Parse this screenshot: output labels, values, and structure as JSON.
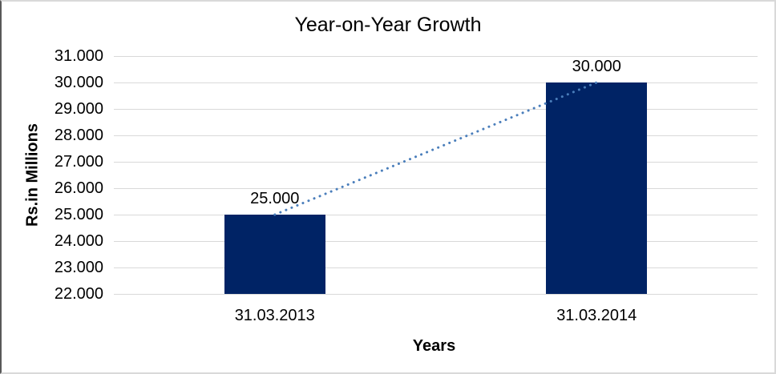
{
  "chart_data": {
    "type": "bar",
    "title": "Year-on-Year Growth",
    "xlabel": "Years",
    "ylabel": "Rs.in Millions",
    "categories": [
      "31.03.2013",
      "31.03.2014"
    ],
    "values": [
      25000,
      30000
    ],
    "value_labels": [
      "25.000",
      "30.000"
    ],
    "ylim": [
      22000,
      31000
    ],
    "yticks": [
      {
        "value": 22000,
        "label": "22.000"
      },
      {
        "value": 23000,
        "label": "23.000"
      },
      {
        "value": 24000,
        "label": "24.000"
      },
      {
        "value": 25000,
        "label": "25.000"
      },
      {
        "value": 26000,
        "label": "26.000"
      },
      {
        "value": 27000,
        "label": "27.000"
      },
      {
        "value": 28000,
        "label": "28.000"
      },
      {
        "value": 29000,
        "label": "29.000"
      },
      {
        "value": 30000,
        "label": "30.000"
      },
      {
        "value": 31000,
        "label": "31.000"
      }
    ],
    "grid": "horizontal",
    "legend": "none",
    "trendline": {
      "style": "dotted",
      "from_value": 25000,
      "to_value": 30000
    },
    "colors": {
      "bar": "#002365",
      "trendline": "#4a7ebb",
      "gridline": "#d9d9d9",
      "text": "#000000",
      "background": "#ffffff"
    }
  }
}
